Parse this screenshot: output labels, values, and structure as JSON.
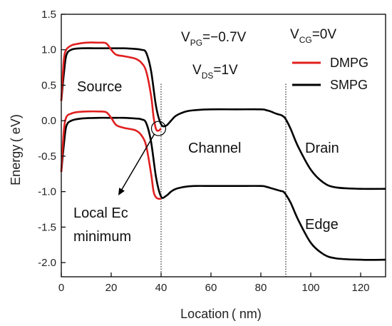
{
  "chart_data": {
    "type": "line",
    "xlabel": "Location ( nm)",
    "ylabel": "Energy ( eV)",
    "xlim": [
      0,
      130
    ],
    "ylim": [
      -2.2,
      1.5
    ],
    "xticks": [
      0,
      20,
      40,
      60,
      80,
      100,
      120
    ],
    "xtick_labels": [
      "0",
      "20",
      "40",
      "60",
      "80",
      "100",
      "120"
    ],
    "yticks": [
      1.5,
      1.0,
      0.5,
      0.0,
      -0.5,
      -1.0,
      -1.5,
      -2.0
    ],
    "ytick_labels": [
      "1.5",
      "1.0",
      "0.5",
      "0.0",
      "-0.5",
      "-1.0",
      "-1.5",
      "-2.0"
    ],
    "grid": false,
    "legend_position": "top-right",
    "colors": {
      "DMPG": "#e02020",
      "SMPG": "#000000"
    },
    "vlines": [
      40,
      90
    ],
    "params": [
      {
        "key": "VPG",
        "base": "V",
        "sub": "PG",
        "rest": "=−0.7V"
      },
      {
        "key": "VCG",
        "base": "V",
        "sub": "CG",
        "rest": "=0V"
      },
      {
        "key": "VDS",
        "base": "V",
        "sub": "DS",
        "rest": "=1V"
      }
    ],
    "regions": [
      "Source",
      "Channel",
      "Drain",
      "Edge"
    ],
    "annotation": {
      "text_line1": "Local Ec",
      "text_line2": "minimum",
      "point": [
        39,
        -0.11
      ]
    },
    "series": [
      {
        "name": "SMPG",
        "band": "Ec",
        "x": [
          0,
          1,
          2,
          4,
          8,
          15,
          20,
          25,
          30,
          32,
          34,
          36,
          38,
          40,
          42,
          44,
          46,
          50,
          54,
          60,
          70,
          80,
          82,
          84,
          86,
          88,
          89,
          90,
          92,
          95,
          100,
          105,
          110,
          120,
          130
        ],
        "y": [
          0.28,
          0.65,
          0.92,
          1.0,
          1.02,
          1.02,
          1.02,
          1.02,
          1.01,
          1.0,
          0.96,
          0.7,
          0.2,
          -0.05,
          -0.07,
          0.0,
          0.07,
          0.13,
          0.15,
          0.16,
          0.16,
          0.16,
          0.15,
          0.13,
          0.1,
          0.08,
          0.06,
          0.02,
          -0.12,
          -0.37,
          -0.69,
          -0.87,
          -0.94,
          -0.96,
          -0.96
        ]
      },
      {
        "name": "SMPG",
        "band": "Ev",
        "x": [
          0,
          1,
          2,
          4,
          8,
          15,
          20,
          25,
          30,
          32,
          34,
          36,
          38,
          40,
          42,
          44,
          46,
          50,
          54,
          60,
          70,
          80,
          82,
          84,
          86,
          88,
          89,
          90,
          92,
          95,
          100,
          105,
          110,
          120,
          130
        ],
        "y": [
          -0.72,
          -0.35,
          -0.08,
          0.0,
          0.03,
          0.04,
          0.04,
          0.04,
          0.03,
          0.02,
          -0.03,
          -0.3,
          -0.8,
          -1.07,
          -1.06,
          -1.0,
          -0.96,
          -0.93,
          -0.92,
          -0.92,
          -0.92,
          -0.92,
          -0.93,
          -0.95,
          -0.97,
          -0.99,
          -1.0,
          -1.04,
          -1.16,
          -1.4,
          -1.72,
          -1.88,
          -1.94,
          -1.96,
          -1.96
        ]
      },
      {
        "name": "DMPG",
        "band": "Ec",
        "x": [
          0,
          1,
          2,
          4,
          6,
          10,
          15,
          18,
          20,
          22,
          25,
          28,
          30,
          32,
          34,
          36,
          37,
          38,
          39,
          40
        ],
        "y": [
          0.28,
          0.85,
          1.0,
          1.06,
          1.08,
          1.1,
          1.1,
          1.09,
          1.0,
          0.93,
          0.91,
          0.89,
          0.87,
          0.82,
          0.7,
          0.35,
          0.05,
          -0.12,
          -0.14,
          -0.11
        ]
      },
      {
        "name": "DMPG",
        "band": "Ev",
        "x": [
          0,
          1,
          2,
          4,
          6,
          10,
          15,
          18,
          20,
          22,
          25,
          28,
          30,
          32,
          34,
          36,
          37,
          38,
          39,
          40
        ],
        "y": [
          -0.72,
          -0.15,
          0.05,
          0.1,
          0.12,
          0.13,
          0.13,
          0.12,
          0.04,
          -0.06,
          -0.1,
          -0.12,
          -0.14,
          -0.2,
          -0.35,
          -0.75,
          -1.0,
          -1.08,
          -1.1,
          -1.1
        ]
      }
    ]
  }
}
